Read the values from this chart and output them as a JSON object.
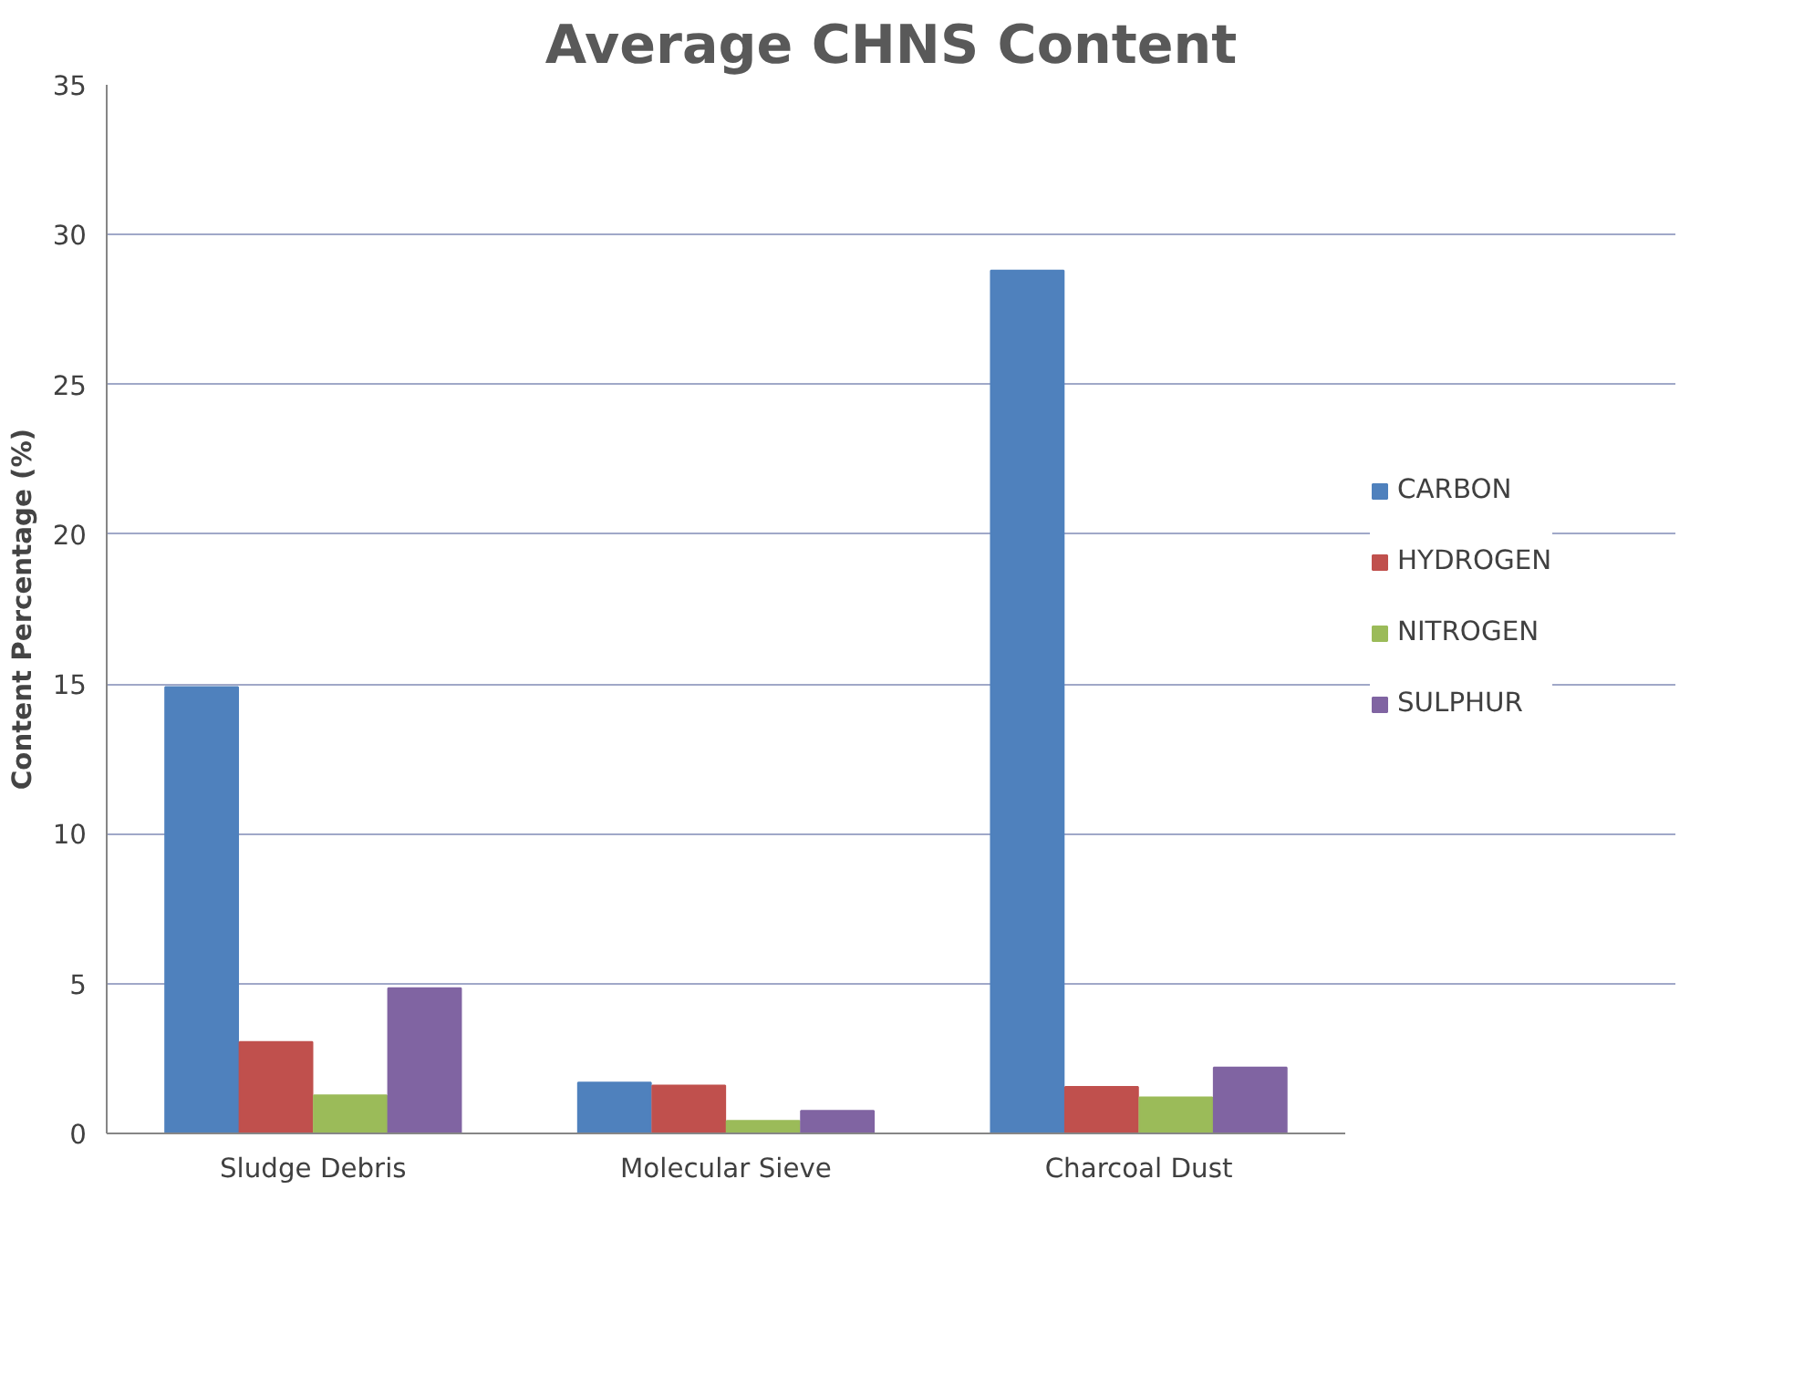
{
  "chart_data": {
    "type": "bar",
    "title": "Average CHNS Content",
    "ylabel": "Content Percentage (%)",
    "categories": [
      "Sludge Debris",
      "Molecular Sieve",
      "Charcoal Dust"
    ],
    "series": [
      {
        "name": "CARBON",
        "color": "#4f81bd",
        "values": [
          14.9,
          1.7,
          28.8
        ]
      },
      {
        "name": "HYDROGEN",
        "color": "#c0504d",
        "values": [
          3.05,
          1.6,
          1.55
        ]
      },
      {
        "name": "NITROGEN",
        "color": "#9bbb59",
        "values": [
          1.27,
          0.42,
          1.2
        ]
      },
      {
        "name": "SULPHUR",
        "color": "#8064a2",
        "values": [
          4.85,
          0.75,
          2.2
        ]
      }
    ],
    "ylim": [
      0,
      35
    ],
    "yticks": [
      0,
      5,
      10,
      15,
      20,
      25,
      30,
      35
    ],
    "grid": "y",
    "legend": "right"
  }
}
